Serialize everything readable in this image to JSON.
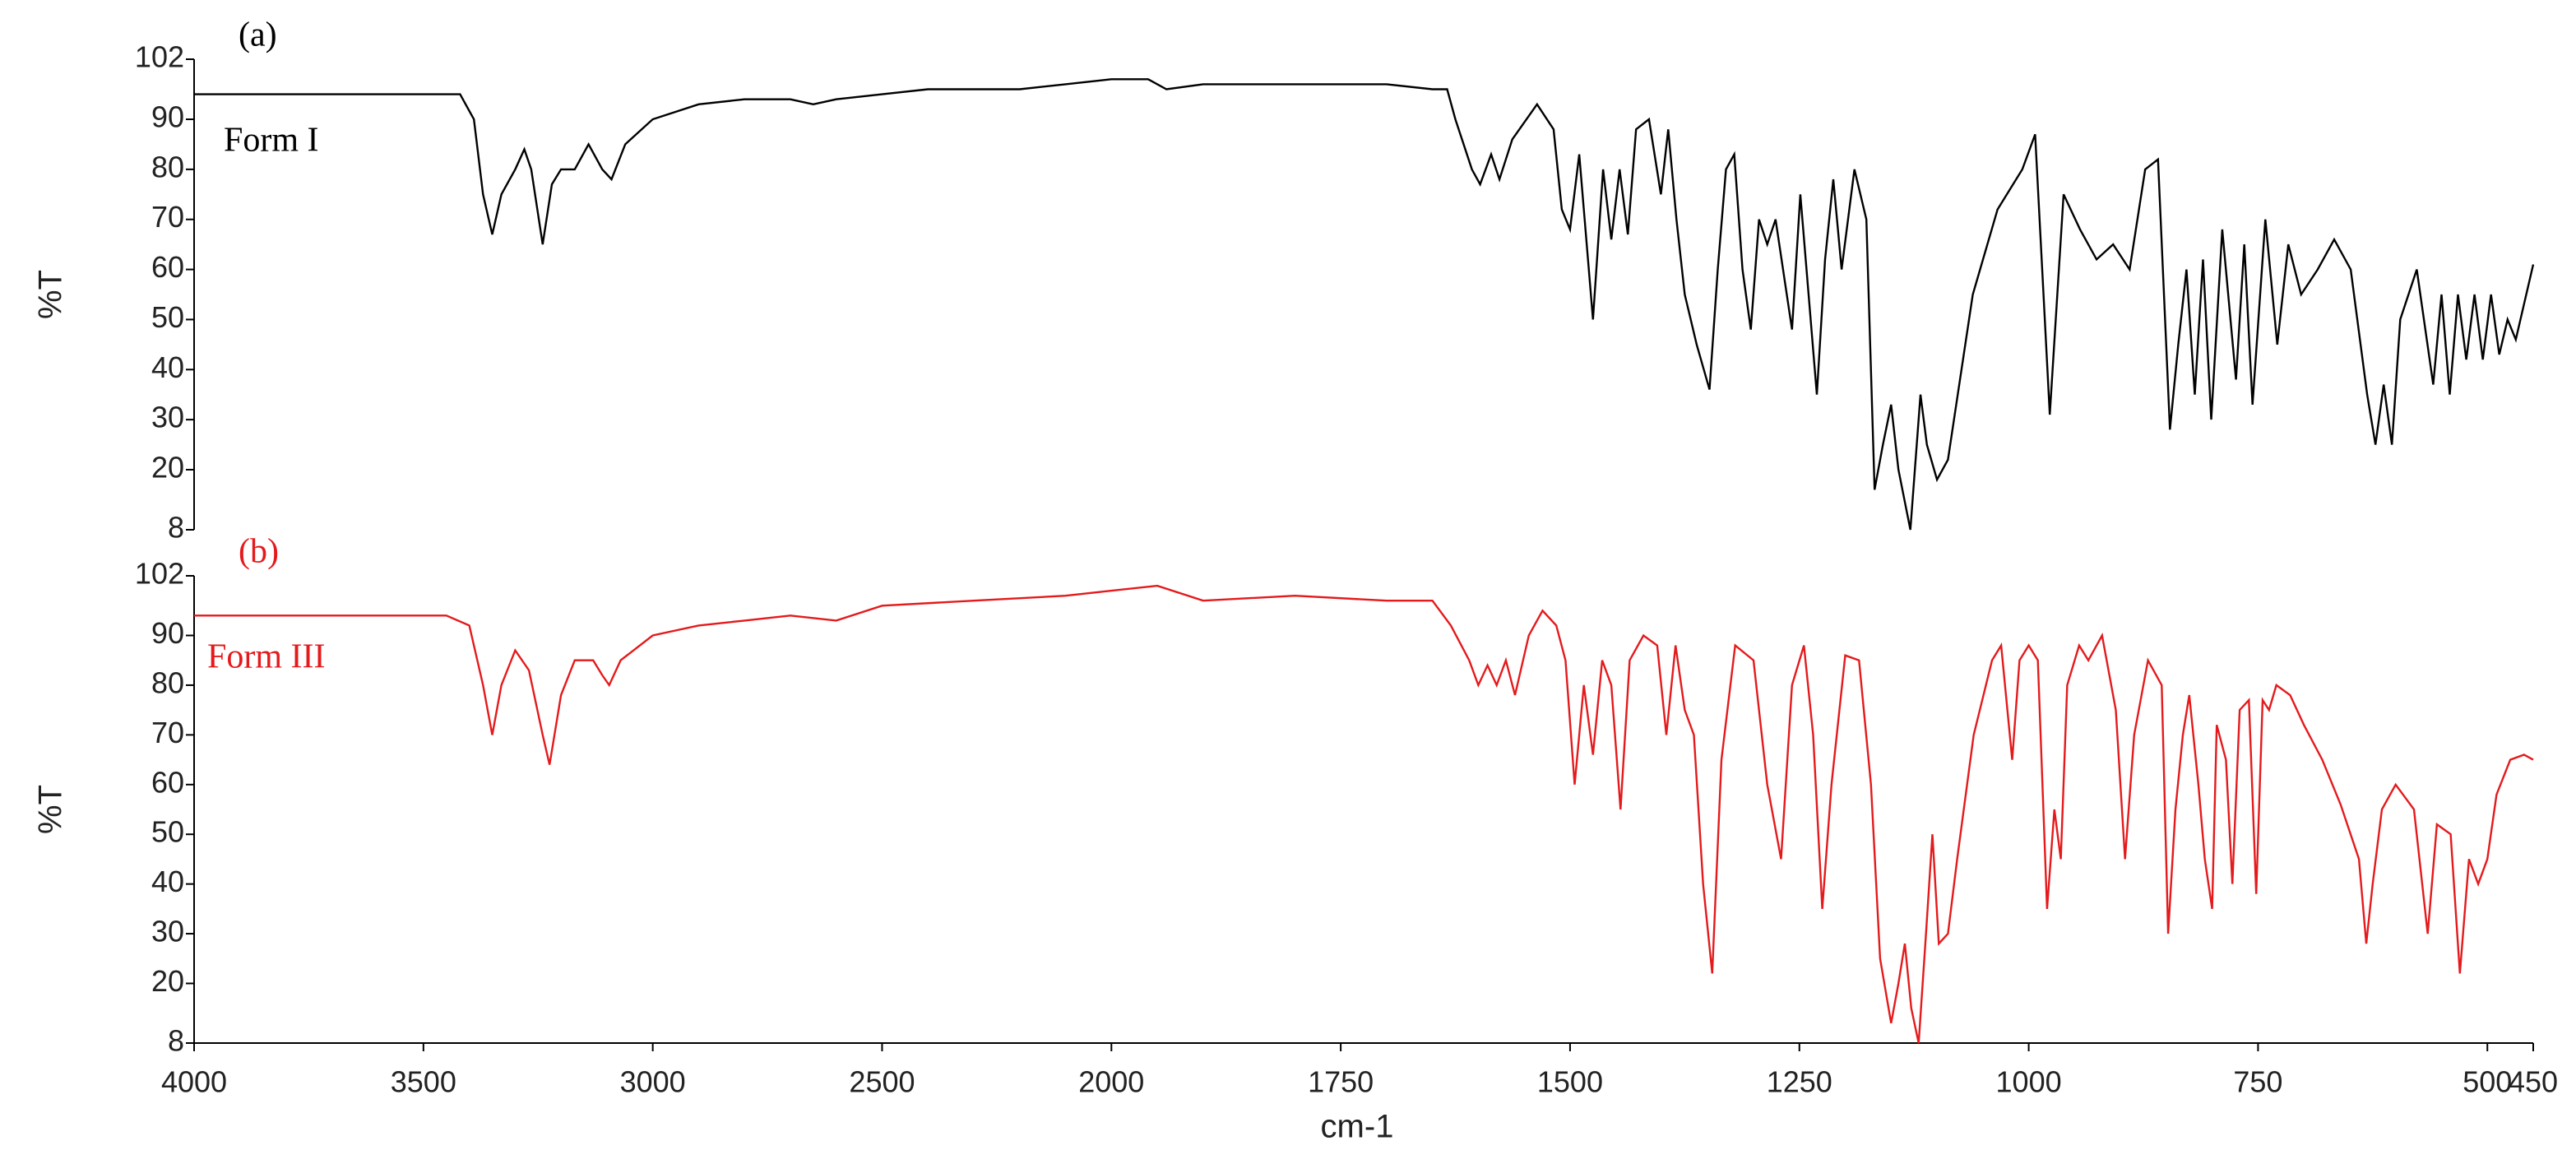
{
  "chart_data": [
    {
      "type": "line",
      "label": "(a)",
      "ylabel": "%T",
      "xlim": [
        4000,
        450
      ],
      "x_scale_change": {
        "at": 2000,
        "factor": 2
      },
      "ylim": [
        8,
        102
      ],
      "yticks": [
        8,
        20,
        30,
        40,
        50,
        60,
        70,
        80,
        90,
        102
      ],
      "x": [
        4000,
        3500,
        3420,
        3390,
        3370,
        3350,
        3330,
        3300,
        3280,
        3265,
        3240,
        3220,
        3200,
        3170,
        3140,
        3110,
        3090,
        3060,
        3000,
        2900,
        2800,
        2700,
        2650,
        2600,
        2500,
        2400,
        2200,
        2100,
        2000,
        1960,
        1940,
        1900,
        1800,
        1700,
        1650,
        1634,
        1625,
        1607,
        1598,
        1586,
        1577,
        1563,
        1536,
        1518,
        1509,
        1500,
        1490,
        1475,
        1464,
        1455,
        1446,
        1437,
        1428,
        1414,
        1401,
        1393,
        1384,
        1375,
        1362,
        1348,
        1339,
        1330,
        1321,
        1312,
        1303,
        1294,
        1285,
        1276,
        1258,
        1249,
        1231,
        1222,
        1213,
        1204,
        1190,
        1177,
        1168,
        1159,
        1150,
        1142,
        1129,
        1118,
        1111,
        1100,
        1088,
        1061,
        1034,
        1007,
        993,
        977,
        962,
        944,
        926,
        908,
        890,
        873,
        859,
        846,
        837,
        828,
        819,
        810,
        801,
        789,
        774,
        765,
        756,
        742,
        729,
        717,
        703,
        685,
        667,
        649,
        631,
        622,
        613,
        604,
        595,
        577,
        559,
        550,
        541,
        532,
        523,
        514,
        505,
        496,
        487,
        478,
        469,
        450
      ],
      "series": [
        {
          "name": "Form I",
          "color": "#000000",
          "values": [
            95,
            95,
            95,
            90,
            75,
            67,
            75,
            80,
            84,
            80,
            65,
            77,
            80,
            80,
            85,
            80,
            78,
            85,
            90,
            93,
            94,
            94,
            93,
            94,
            95,
            96,
            96,
            97,
            98,
            98,
            96,
            97,
            97,
            97,
            96,
            96,
            90,
            80,
            77,
            83,
            78,
            86,
            93,
            88,
            72,
            68,
            83,
            50,
            80,
            66,
            80,
            67,
            88,
            90,
            75,
            88,
            70,
            55,
            45,
            36,
            60,
            80,
            83,
            60,
            48,
            70,
            65,
            70,
            48,
            75,
            35,
            62,
            78,
            60,
            80,
            70,
            16,
            25,
            33,
            20,
            8,
            35,
            25,
            18,
            22,
            55,
            72,
            80,
            87,
            31,
            75,
            68,
            62,
            65,
            60,
            80,
            82,
            28,
            45,
            60,
            35,
            62,
            30,
            68,
            38,
            65,
            33,
            70,
            45,
            65,
            55,
            60,
            66,
            60,
            35,
            25,
            37,
            25,
            50,
            60,
            37,
            55,
            35,
            55,
            42,
            55,
            42,
            55,
            43,
            50,
            46,
            61
          ]
        }
      ]
    },
    {
      "type": "line",
      "label": "(b)",
      "ylabel": "%T",
      "xlabel": "cm-1",
      "xlim": [
        4000,
        450
      ],
      "x_scale_change": {
        "at": 2000,
        "factor": 2
      },
      "xticks": [
        4000,
        3500,
        3000,
        2500,
        2000,
        1750,
        1500,
        1250,
        1000,
        750,
        500,
        450
      ],
      "ylim": [
        8,
        102
      ],
      "yticks": [
        8,
        20,
        30,
        40,
        50,
        60,
        70,
        80,
        90,
        102
      ],
      "x": [
        4000,
        3450,
        3400,
        3370,
        3350,
        3330,
        3300,
        3270,
        3240,
        3225,
        3200,
        3170,
        3130,
        3110,
        3095,
        3070,
        3000,
        2900,
        2800,
        2700,
        2600,
        2500,
        2300,
        2100,
        2000,
        1950,
        1900,
        1800,
        1700,
        1650,
        1630,
        1610,
        1600,
        1590,
        1580,
        1570,
        1560,
        1545,
        1530,
        1515,
        1505,
        1495,
        1485,
        1475,
        1465,
        1455,
        1445,
        1435,
        1420,
        1405,
        1395,
        1385,
        1375,
        1365,
        1355,
        1345,
        1335,
        1320,
        1300,
        1285,
        1270,
        1258,
        1245,
        1235,
        1225,
        1215,
        1200,
        1185,
        1172,
        1162,
        1150,
        1142,
        1135,
        1128,
        1120,
        1112,
        1105,
        1098,
        1088,
        1078,
        1060,
        1040,
        1030,
        1018,
        1010,
        1000,
        990,
        980,
        972,
        965,
        958,
        945,
        935,
        920,
        905,
        895,
        885,
        870,
        855,
        848,
        840,
        832,
        825,
        815,
        808,
        800,
        795,
        785,
        778,
        770,
        760,
        752,
        745,
        738,
        730,
        715,
        700,
        680,
        660,
        640,
        632,
        625,
        615,
        600,
        580,
        565,
        555,
        540,
        530,
        520,
        510,
        500,
        490,
        475,
        460,
        450
      ],
      "series": [
        {
          "name": "Form III",
          "color": "#e41a1c",
          "values": [
            94,
            94,
            92,
            80,
            70,
            80,
            87,
            83,
            70,
            64,
            78,
            85,
            85,
            82,
            80,
            85,
            90,
            92,
            93,
            94,
            93,
            96,
            97,
            98,
            99,
            100,
            97,
            98,
            97,
            97,
            92,
            85,
            80,
            84,
            80,
            85,
            78,
            90,
            95,
            92,
            85,
            60,
            80,
            66,
            85,
            80,
            55,
            85,
            90,
            88,
            70,
            88,
            75,
            70,
            40,
            22,
            65,
            88,
            85,
            60,
            45,
            80,
            88,
            70,
            35,
            60,
            86,
            85,
            60,
            25,
            12,
            20,
            28,
            15,
            8,
            30,
            50,
            28,
            30,
            45,
            70,
            85,
            88,
            65,
            85,
            88,
            85,
            35,
            55,
            45,
            80,
            88,
            85,
            90,
            75,
            45,
            70,
            85,
            80,
            30,
            55,
            70,
            78,
            60,
            45,
            35,
            72,
            65,
            40,
            75,
            77,
            38,
            77,
            75,
            80,
            78,
            72,
            65,
            56,
            45,
            28,
            40,
            55,
            60,
            55,
            30,
            52,
            50,
            22,
            45,
            40,
            45,
            58,
            65,
            66,
            65
          ]
        }
      ]
    }
  ]
}
